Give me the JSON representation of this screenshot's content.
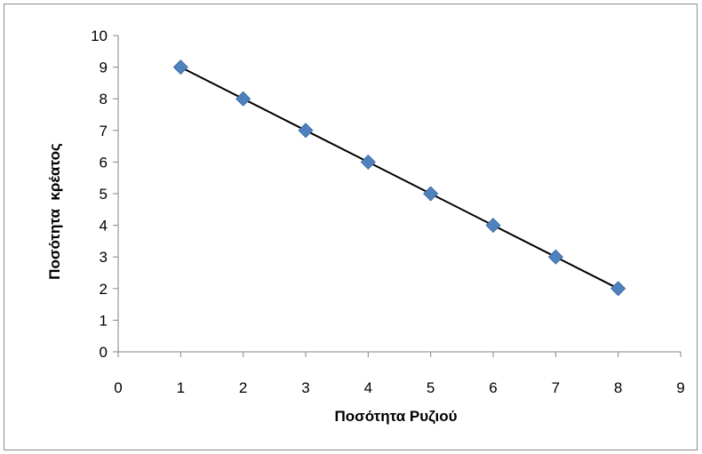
{
  "chart_data": {
    "type": "scatter",
    "title": "",
    "xlabel": "Ποσότητα Ρυζιού",
    "ylabel": "Ποσότητα  κρέατος",
    "xlim": [
      0,
      9
    ],
    "ylim": [
      0,
      10
    ],
    "xticks": [
      0,
      1,
      2,
      3,
      4,
      5,
      6,
      7,
      8,
      9
    ],
    "yticks": [
      0,
      1,
      2,
      3,
      4,
      5,
      6,
      7,
      8,
      9,
      10
    ],
    "grid": false,
    "legend": "none",
    "series": [
      {
        "x": [
          1,
          2,
          3,
          4,
          5,
          6,
          7,
          8
        ],
        "y": [
          9,
          8,
          7,
          6,
          5,
          4,
          3,
          2
        ],
        "marker": "diamond",
        "marker_color": "#4f81bd",
        "line": true,
        "line_color": "#000000"
      }
    ]
  }
}
